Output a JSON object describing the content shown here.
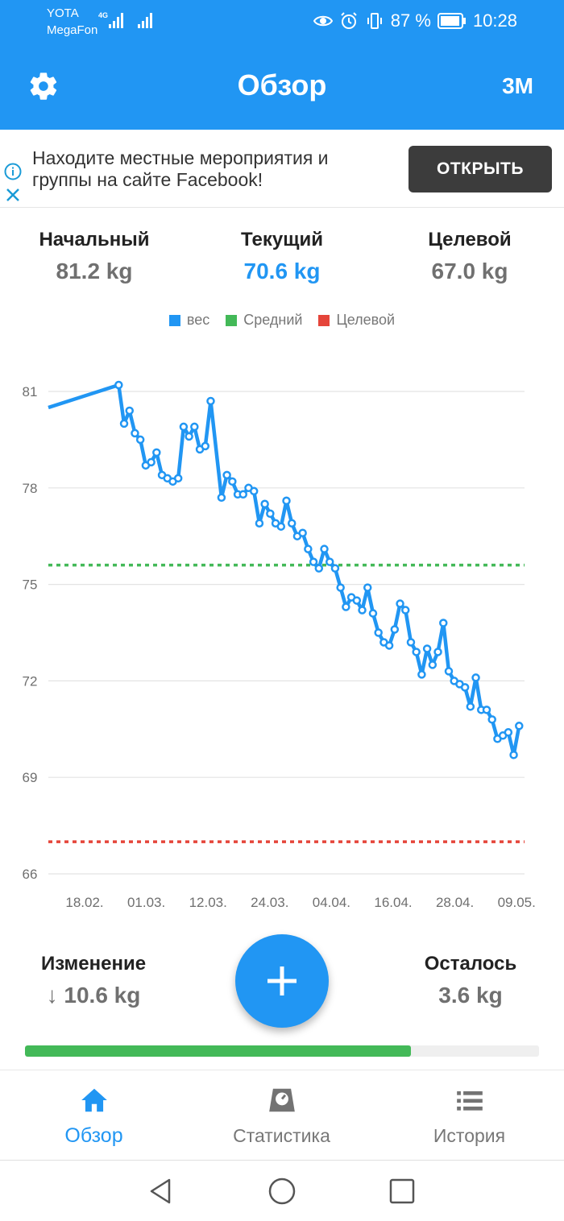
{
  "status_bar": {
    "carrier_1": "YOTA",
    "carrier_2": "MegaFon",
    "network": "4G",
    "battery": "87 %",
    "time": "10:28"
  },
  "header": {
    "title": "Обзор",
    "range_label": "3M",
    "settings_icon": "gear-icon"
  },
  "ad": {
    "text": "Находите местные мероприятия и группы на сайте Facebook!",
    "button_label": "ОТКРЫТЬ"
  },
  "summary": {
    "start_label": "Начальный",
    "start_value": "81.2 kg",
    "current_label": "Текущий",
    "current_value": "70.6 kg",
    "goal_label": "Целевой",
    "goal_value": "67.0 kg"
  },
  "chart_data": {
    "type": "line",
    "legend": [
      {
        "name": "вес",
        "color": "#2196f3"
      },
      {
        "name": "Средний",
        "color": "#43b958"
      },
      {
        "name": "Целевой",
        "color": "#e5453a"
      }
    ],
    "legend_position": "top-center",
    "yticks": [
      "81",
      "78",
      "75",
      "72",
      "69",
      "66"
    ],
    "xticks": [
      "18.02.",
      "01.03.",
      "12.03.",
      "24.03.",
      "04.04.",
      "16.04.",
      "28.04.",
      "09.05."
    ],
    "ylim": [
      66,
      82
    ],
    "xlim": [
      -3,
      85
    ],
    "average": 75.6,
    "goal": 67.0,
    "grid": true,
    "series": [
      {
        "name": "вес",
        "points": [
          [
            -3,
            80.5
          ],
          [
            10,
            81.2
          ],
          [
            11,
            80.0
          ],
          [
            12,
            80.4
          ],
          [
            13,
            79.7
          ],
          [
            14,
            79.5
          ],
          [
            15,
            78.7
          ],
          [
            16,
            78.8
          ],
          [
            17,
            79.1
          ],
          [
            18,
            78.4
          ],
          [
            19,
            78.3
          ],
          [
            20,
            78.2
          ],
          [
            21,
            78.3
          ],
          [
            22,
            79.9
          ],
          [
            23,
            79.6
          ],
          [
            24,
            79.9
          ],
          [
            25,
            79.2
          ],
          [
            26,
            79.3
          ],
          [
            27,
            80.7
          ],
          [
            29,
            77.7
          ],
          [
            30,
            78.4
          ],
          [
            31,
            78.2
          ],
          [
            32,
            77.8
          ],
          [
            33,
            77.8
          ],
          [
            34,
            78.0
          ],
          [
            35,
            77.9
          ],
          [
            36,
            76.9
          ],
          [
            37,
            77.5
          ],
          [
            38,
            77.2
          ],
          [
            39,
            76.9
          ],
          [
            40,
            76.8
          ],
          [
            41,
            77.6
          ],
          [
            42,
            76.9
          ],
          [
            43,
            76.5
          ],
          [
            44,
            76.6
          ],
          [
            45,
            76.1
          ],
          [
            46,
            75.7
          ],
          [
            47,
            75.5
          ],
          [
            48,
            76.1
          ],
          [
            49,
            75.7
          ],
          [
            50,
            75.5
          ],
          [
            51,
            74.9
          ],
          [
            52,
            74.3
          ],
          [
            53,
            74.6
          ],
          [
            54,
            74.5
          ],
          [
            55,
            74.2
          ],
          [
            56,
            74.9
          ],
          [
            57,
            74.1
          ],
          [
            58,
            73.5
          ],
          [
            59,
            73.2
          ],
          [
            60,
            73.1
          ],
          [
            61,
            73.6
          ],
          [
            62,
            74.4
          ],
          [
            63,
            74.2
          ],
          [
            64,
            73.2
          ],
          [
            65,
            72.9
          ],
          [
            66,
            72.2
          ],
          [
            67,
            73.0
          ],
          [
            68,
            72.5
          ],
          [
            69,
            72.9
          ],
          [
            70,
            73.8
          ],
          [
            71,
            72.3
          ],
          [
            72,
            72.0
          ],
          [
            73,
            71.9
          ],
          [
            74,
            71.8
          ],
          [
            75,
            71.2
          ],
          [
            76,
            72.1
          ],
          [
            77,
            71.1
          ],
          [
            78,
            71.1
          ],
          [
            79,
            70.8
          ],
          [
            80,
            70.2
          ],
          [
            81,
            70.3
          ],
          [
            82,
            70.4
          ],
          [
            83,
            69.7
          ],
          [
            84,
            70.6
          ]
        ]
      }
    ]
  },
  "bottom_stats": {
    "change_label": "Изменение",
    "change_value": "↓ 10.6 kg",
    "remaining_label": "Осталось",
    "remaining_value": "3.6 kg",
    "progress_fraction": 0.75
  },
  "nav": {
    "items": [
      {
        "label": "Обзор",
        "icon": "home-icon",
        "active": true
      },
      {
        "label": "Статистика",
        "icon": "scale-icon",
        "active": false
      },
      {
        "label": "История",
        "icon": "list-icon",
        "active": false
      }
    ]
  },
  "colors": {
    "primary": "#2196f3",
    "average_line": "#43b958",
    "goal_line": "#e5453a",
    "ad_button": "#3c3c3c"
  }
}
